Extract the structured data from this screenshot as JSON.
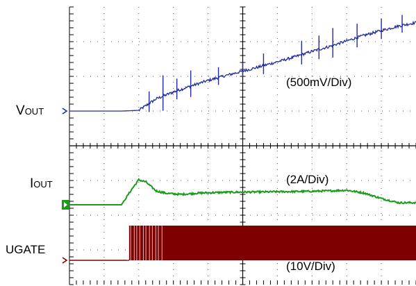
{
  "chart_data": {
    "type": "line",
    "grid": true,
    "x_divisions": 10,
    "y_divisions": 8,
    "series": [
      {
        "name": "VOUT",
        "label_main": "V",
        "label_sub": "OUT",
        "scale": "(500mV/Div)",
        "color": "#1f2a9e",
        "ground_div": 5.0,
        "x": [
          0,
          0.5,
          1.0,
          1.5,
          2.0,
          2.5,
          3.0,
          3.5,
          4.0,
          4.5,
          5.0,
          5.5,
          6.0,
          6.5,
          7.0,
          7.5,
          8.0,
          8.5,
          9.0,
          9.5,
          10.0
        ],
        "y": [
          5.0,
          5.0,
          5.0,
          5.0,
          5.02,
          5.35,
          5.55,
          5.72,
          5.88,
          6.02,
          6.15,
          6.28,
          6.42,
          6.56,
          6.72,
          6.86,
          7.02,
          7.18,
          7.32,
          7.45,
          7.55
        ],
        "spikes": [
          [
            2.3,
            0.35
          ],
          [
            2.7,
            0.6
          ],
          [
            3.1,
            0.35
          ],
          [
            3.5,
            0.45
          ],
          [
            4.3,
            0.3
          ],
          [
            5.0,
            0.25
          ],
          [
            5.6,
            0.35
          ],
          [
            6.7,
            0.4
          ],
          [
            7.2,
            0.4
          ],
          [
            7.6,
            0.5
          ],
          [
            8.3,
            0.4
          ],
          [
            9.0,
            0.35
          ],
          [
            9.6,
            0.3
          ]
        ]
      },
      {
        "name": "IOUT",
        "label_main": "I",
        "label_sub": "OUT",
        "scale": "(2A/Div)",
        "color": "#1c9a1c",
        "ground_div": 2.3,
        "x": [
          0,
          1.5,
          1.8,
          2.0,
          2.2,
          2.5,
          2.8,
          3.2,
          3.8,
          4.5,
          5.5,
          6.5,
          7.5,
          8.0,
          8.5,
          9.0,
          9.5,
          10.0
        ],
        "y": [
          2.3,
          2.3,
          2.75,
          3.02,
          2.96,
          2.7,
          2.63,
          2.6,
          2.64,
          2.66,
          2.67,
          2.68,
          2.7,
          2.72,
          2.64,
          2.48,
          2.36,
          2.36
        ]
      },
      {
        "name": "UGATE",
        "label_main": "UGATE",
        "label_sub": "",
        "scale": "(10V/Div)",
        "color": "#7f0000",
        "ground_div": 0.7,
        "x": [
          0,
          1.68,
          1.72,
          10.0
        ],
        "y": [
          0.7,
          0.7,
          0.7,
          0.7
        ],
        "switching_start": 1.72,
        "switching_high": 1.7
      }
    ]
  }
}
